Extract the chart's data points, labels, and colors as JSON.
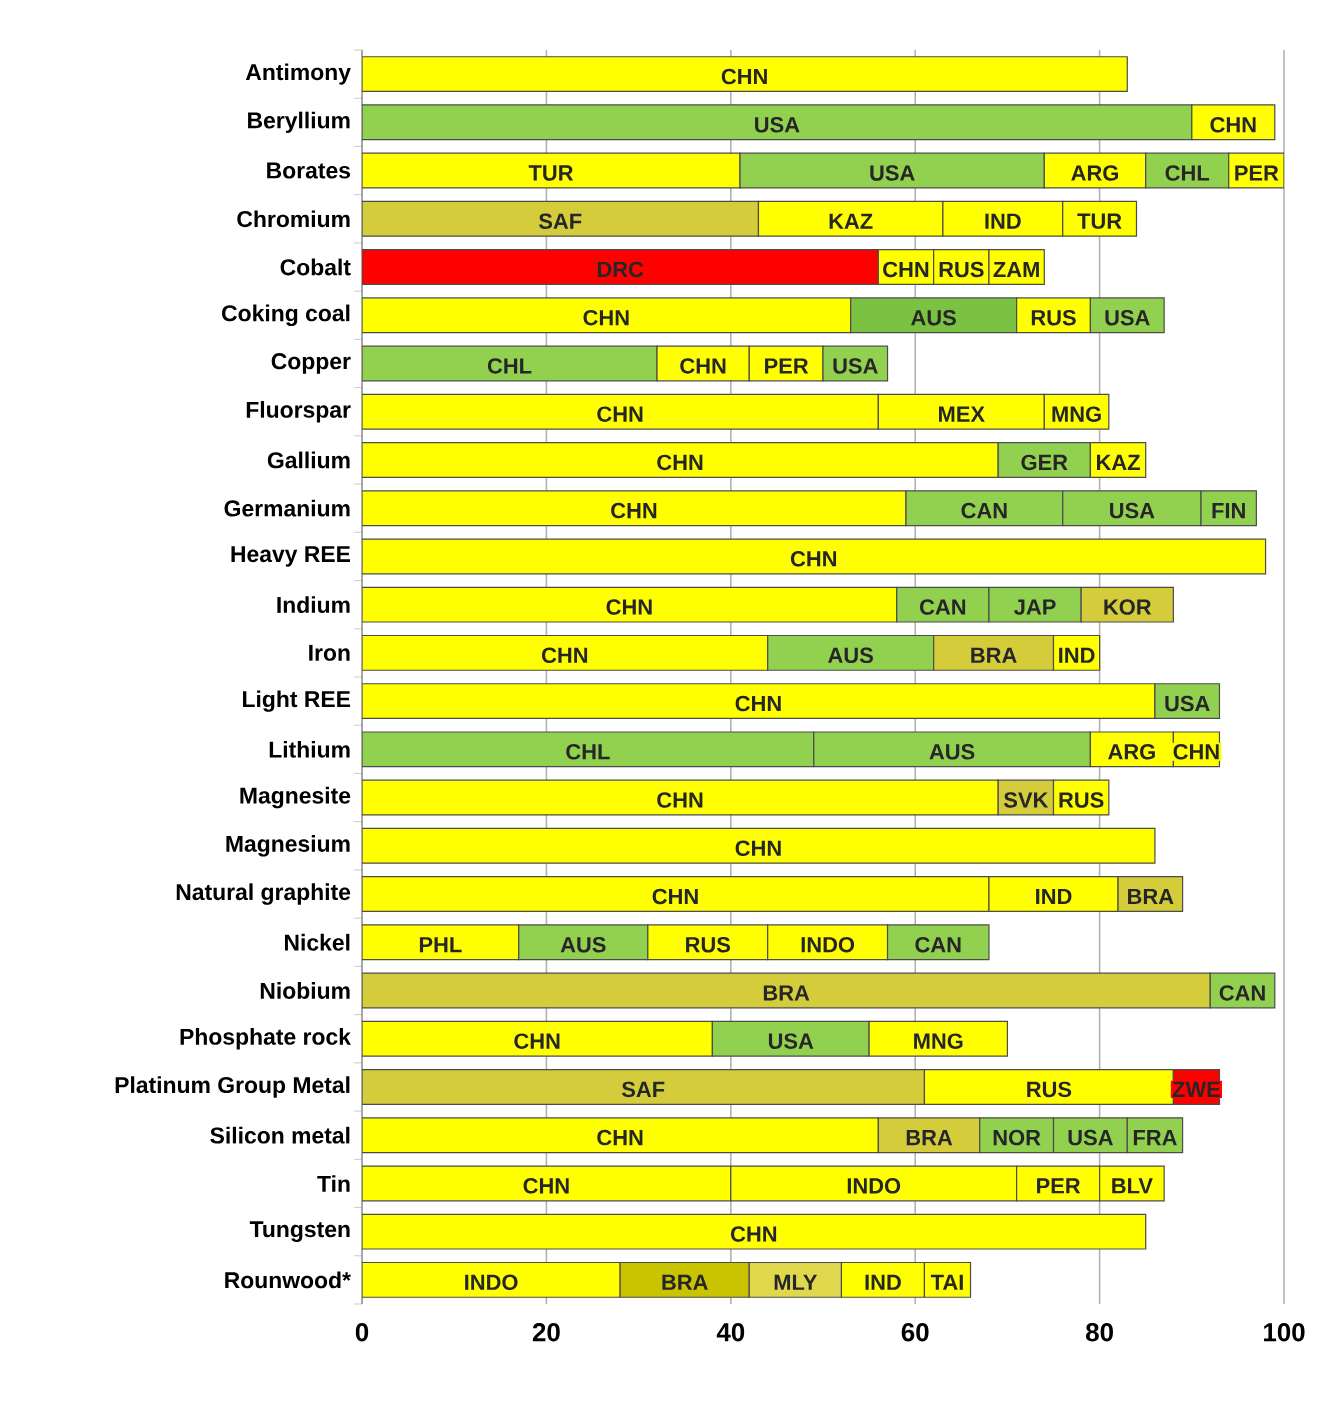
{
  "chart_data": {
    "type": "bar",
    "orientation": "horizontal",
    "stacked": true,
    "grid": "x",
    "categories": [
      "Antimony",
      "Beryllium",
      "Borates",
      "Chromium",
      "Cobalt",
      "Coking coal",
      "Copper",
      "Fluorspar",
      "Gallium",
      "Germanium",
      "Heavy REE",
      "Indium",
      "Iron",
      "Light REE",
      "Lithium",
      "Magnesite",
      "Magnesium",
      "Natural graphite",
      "Nickel",
      "Niobium",
      "Phosphate rock",
      "Platinum Group Metal",
      "Silicon metal",
      "Tin",
      "Tungsten",
      "Rounwood*"
    ],
    "xlim": [
      0,
      100
    ],
    "xticks": [
      0,
      20,
      40,
      60,
      80,
      100
    ],
    "series": [
      {
        "values": [
          83,
          90,
          41,
          43,
          56,
          53,
          32,
          56,
          69,
          59,
          98,
          58,
          44,
          86,
          49,
          69,
          86,
          68,
          17,
          92,
          38,
          61,
          56,
          40,
          85,
          28
        ],
        "value_labels": [
          "CHN",
          "USA",
          "TUR",
          "SAF",
          "DRC",
          "CHN",
          "CHL",
          "CHN",
          "CHN",
          "CHN",
          "CHN",
          "CHN",
          "CHN",
          "CHN",
          "CHL",
          "CHN",
          "CHN",
          "CHN",
          "PHL",
          "BRA",
          "CHN",
          "SAF",
          "CHN",
          "CHN",
          "CHN",
          "INDO"
        ],
        "colors": [
          "#ffff00",
          "#92d050",
          "#ffff00",
          "#d4cc3a",
          "#ff0000",
          "#ffff00",
          "#92d050",
          "#ffff00",
          "#ffff00",
          "#ffff00",
          "#ffff00",
          "#ffff00",
          "#ffff00",
          "#ffff00",
          "#92d050",
          "#ffff00",
          "#ffff00",
          "#ffff00",
          "#ffff00",
          "#d4cc3a",
          "#ffff00",
          "#d4cc3a",
          "#ffff00",
          "#ffff00",
          "#ffff00",
          "#ffff00"
        ]
      },
      {
        "values": [
          null,
          9,
          33,
          20,
          6,
          18,
          10,
          18,
          10,
          17,
          null,
          10,
          18,
          7,
          30,
          6,
          null,
          14,
          14,
          7,
          17,
          27,
          11,
          31,
          null,
          14
        ],
        "value_labels": [
          null,
          "CHN",
          "USA",
          "KAZ",
          "CHN",
          "AUS",
          "CHN",
          "MEX",
          "GER",
          "CAN",
          null,
          "CAN",
          "AUS",
          "USA",
          "AUS",
          "SVK",
          null,
          "IND",
          "AUS",
          "CAN",
          "USA",
          "RUS",
          "BRA",
          "INDO",
          null,
          "BRA"
        ],
        "colors": [
          null,
          "#ffff00",
          "#92d050",
          "#ffff00",
          "#ffff00",
          "#7cc242",
          "#ffff00",
          "#ffff00",
          "#92d050",
          "#92d050",
          null,
          "#92d050",
          "#92d050",
          "#92d050",
          "#92d050",
          "#d4cc3a",
          null,
          "#ffff00",
          "#92d050",
          "#92d050",
          "#92d050",
          "#ffff00",
          "#d4cc3a",
          "#ffff00",
          null,
          "#c9c300"
        ]
      },
      {
        "values": [
          null,
          null,
          11,
          13,
          6,
          8,
          8,
          7,
          6,
          15,
          null,
          10,
          13,
          null,
          9,
          6,
          null,
          7,
          13,
          null,
          15,
          5,
          8,
          9,
          null,
          10
        ],
        "value_labels": [
          null,
          null,
          "ARG",
          "IND",
          "RUS",
          "RUS",
          "PER",
          "MNG",
          "KAZ",
          "USA",
          null,
          "JAP",
          "BRA",
          null,
          "ARG",
          "RUS",
          null,
          "BRA",
          "RUS",
          null,
          "MNG",
          "ZWE",
          "NOR",
          "PER",
          null,
          "MLY"
        ],
        "colors": [
          null,
          null,
          "#ffff00",
          "#ffff00",
          "#ffff00",
          "#ffff00",
          "#ffff00",
          "#ffff00",
          "#ffff00",
          "#92d050",
          null,
          "#92d050",
          "#d4cc3a",
          null,
          "#ffff00",
          "#ffff00",
          null,
          "#d4cc3a",
          "#ffff00",
          null,
          "#ffff00",
          "#ff0000",
          "#92d050",
          "#ffff00",
          null,
          "#e0d84c"
        ]
      },
      {
        "values": [
          null,
          null,
          9,
          8,
          6,
          8,
          7,
          null,
          null,
          6,
          null,
          10,
          5,
          null,
          5,
          null,
          null,
          null,
          13,
          null,
          null,
          null,
          8,
          7,
          null,
          9
        ],
        "value_labels": [
          null,
          null,
          "CHL",
          "TUR",
          "ZAM",
          "USA",
          "USA",
          null,
          null,
          "FIN",
          null,
          "KOR",
          "IND",
          null,
          "CHN",
          null,
          null,
          null,
          "INDO",
          null,
          null,
          null,
          "USA",
          "BLV",
          null,
          "IND"
        ],
        "colors": [
          null,
          null,
          "#92d050",
          "#ffff00",
          "#ffff00",
          "#92d050",
          "#92d050",
          null,
          null,
          "#92d050",
          null,
          "#d4cc3a",
          "#ffff00",
          null,
          "#ffff00",
          null,
          null,
          null,
          "#ffff00",
          null,
          null,
          null,
          "#92d050",
          "#ffff00",
          null,
          "#ffff00"
        ]
      },
      {
        "values": [
          null,
          null,
          6,
          null,
          null,
          null,
          null,
          null,
          null,
          null,
          null,
          null,
          null,
          null,
          null,
          null,
          null,
          null,
          11,
          null,
          null,
          null,
          6,
          null,
          null,
          5
        ],
        "value_labels": [
          null,
          null,
          "PER",
          null,
          null,
          null,
          null,
          null,
          null,
          null,
          null,
          null,
          null,
          null,
          null,
          null,
          null,
          null,
          "CAN",
          null,
          null,
          null,
          "FRA",
          null,
          null,
          "TAI"
        ],
        "colors": [
          null,
          null,
          "#ffff00",
          null,
          null,
          null,
          null,
          null,
          null,
          null,
          null,
          null,
          null,
          null,
          null,
          null,
          null,
          null,
          "#92d050",
          null,
          null,
          null,
          "#92d050",
          null,
          null,
          "#ffff00"
        ]
      }
    ]
  }
}
